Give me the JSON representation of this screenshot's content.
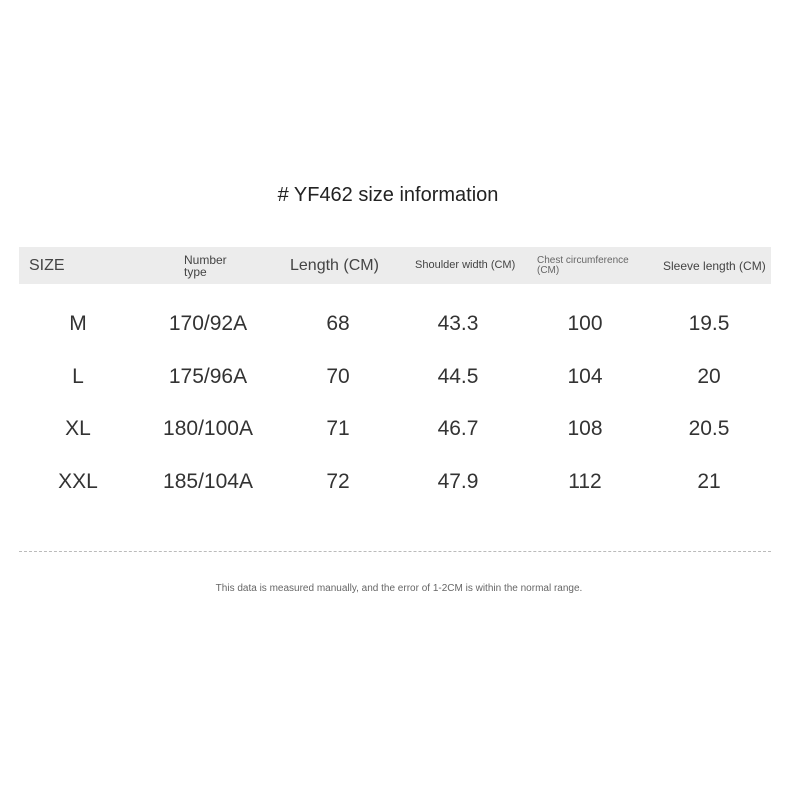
{
  "title": "# YF462 size information",
  "headers": [
    "SIZE",
    "Number type",
    "Length (CM)",
    "Shoulder width (CM)",
    "Chest circumference (CM)",
    "Sleeve length (CM)"
  ],
  "rows": [
    [
      "M",
      "170/92A",
      "68",
      "43.3",
      "100",
      "19.5"
    ],
    [
      "L",
      "175/96A",
      "70",
      "44.5",
      "104",
      "20"
    ],
    [
      "XL",
      "180/100A",
      "71",
      "46.7",
      "108",
      "20.5"
    ],
    [
      "XXL",
      "185/104A",
      "72",
      "47.9",
      "112",
      "21"
    ]
  ],
  "note": "This data is measured manually, and the error of 1-2CM is within the normal range."
}
